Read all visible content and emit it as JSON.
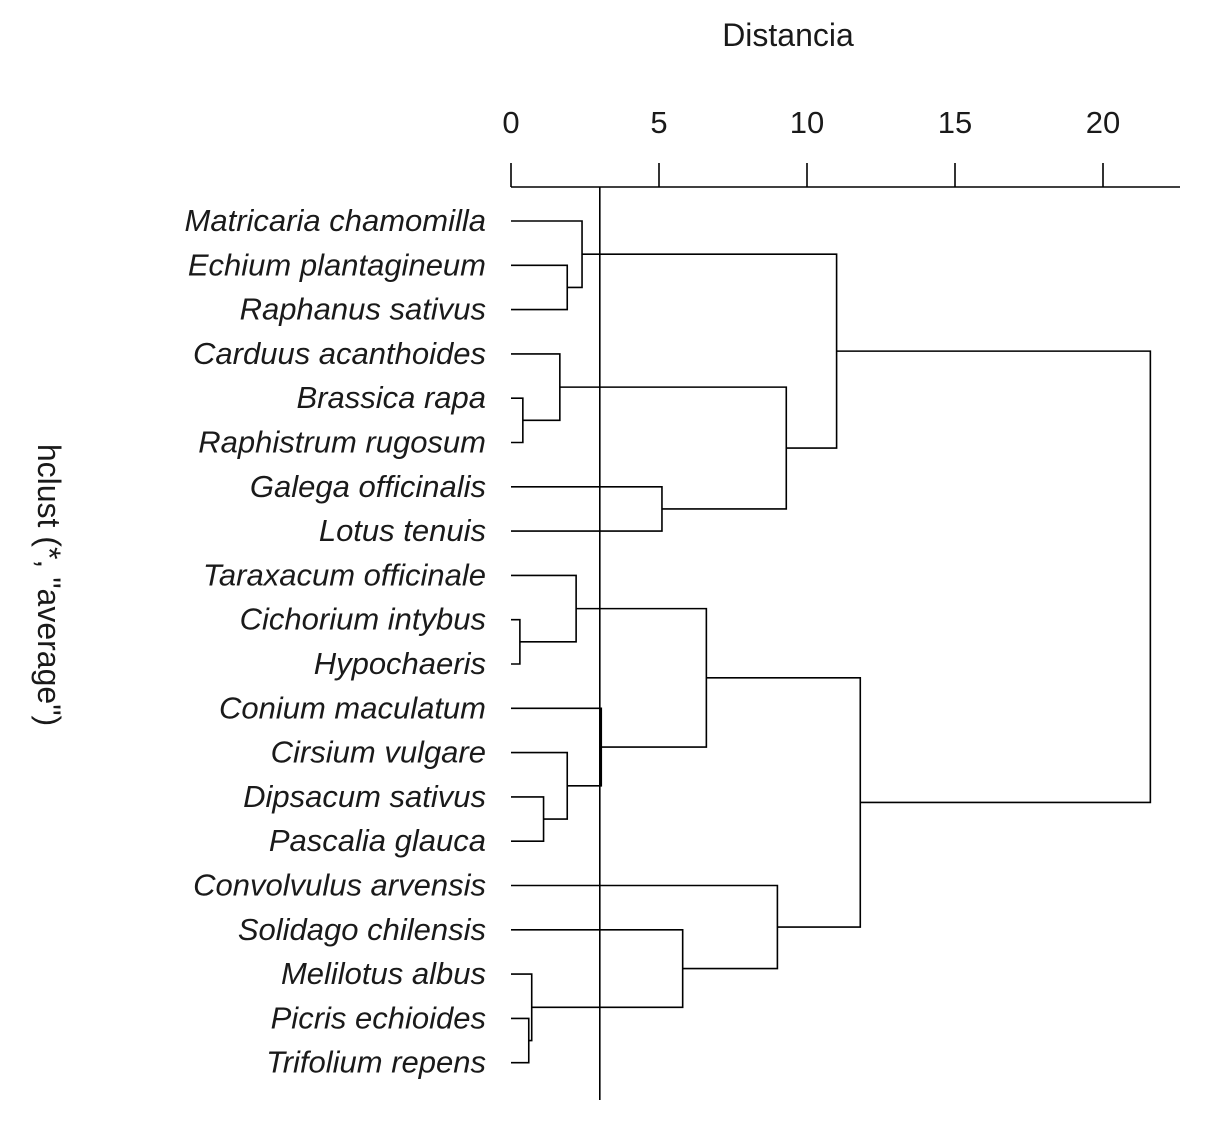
{
  "chart_data": {
    "type": "dendrogram",
    "title": "",
    "xlabel": "Distancia",
    "ylabel": "hclust (*, \"average\")",
    "xlim": [
      0,
      22.5
    ],
    "xticks": [
      "0",
      "5",
      "10",
      "15",
      "20"
    ],
    "xtick_values": [
      0,
      5,
      10,
      15,
      20
    ],
    "cut_height": 3,
    "leaves": [
      "Matricaria chamomilla",
      "Echium plantagineum",
      "Raphanus sativus",
      "Carduus acanthoides",
      "Brassica rapa",
      "Raphistrum rugosum",
      "Galega officinalis",
      "Lotus tenuis",
      "Taraxacum officinale",
      "Cichorium intybus",
      "Hypochaeris",
      "Conium maculatum",
      "Cirsium vulgare",
      "Dipsacum sativus",
      "Pascalia glauca",
      "Convolvulus arvensis",
      "Solidago chilensis",
      "Melilotus albus",
      "Picris echioides",
      "Trifolium repens"
    ],
    "merges": [
      {
        "children": [
          {
            "leaf": 1
          },
          {
            "leaf": 2
          }
        ],
        "height": 1.9
      },
      {
        "children": [
          {
            "leaf": 0
          },
          {
            "node": 0
          }
        ],
        "height": 2.4
      },
      {
        "children": [
          {
            "leaf": 4
          },
          {
            "leaf": 5
          }
        ],
        "height": 0.4
      },
      {
        "children": [
          {
            "leaf": 3
          },
          {
            "node": 2
          }
        ],
        "height": 1.65
      },
      {
        "children": [
          {
            "leaf": 6
          },
          {
            "leaf": 7
          }
        ],
        "height": 5.1
      },
      {
        "children": [
          {
            "node": 3
          },
          {
            "node": 4
          }
        ],
        "height": 9.3
      },
      {
        "children": [
          {
            "node": 1
          },
          {
            "node": 5
          }
        ],
        "height": 11.0
      },
      {
        "children": [
          {
            "leaf": 9
          },
          {
            "leaf": 10
          }
        ],
        "height": 0.3
      },
      {
        "children": [
          {
            "leaf": 8
          },
          {
            "node": 7
          }
        ],
        "height": 2.2
      },
      {
        "children": [
          {
            "leaf": 13
          },
          {
            "leaf": 14
          }
        ],
        "height": 1.1
      },
      {
        "children": [
          {
            "leaf": 12
          },
          {
            "node": 9
          }
        ],
        "height": 1.9
      },
      {
        "children": [
          {
            "leaf": 11
          },
          {
            "node": 10
          }
        ],
        "height": 3.05
      },
      {
        "children": [
          {
            "node": 8
          },
          {
            "node": 11
          }
        ],
        "height": 6.6
      },
      {
        "children": [
          {
            "leaf": 18
          },
          {
            "leaf": 19
          }
        ],
        "height": 0.6
      },
      {
        "children": [
          {
            "leaf": 17
          },
          {
            "node": 13
          }
        ],
        "height": 0.7
      },
      {
        "children": [
          {
            "leaf": 16
          },
          {
            "node": 14
          }
        ],
        "height": 5.8
      },
      {
        "children": [
          {
            "leaf": 15
          },
          {
            "node": 15
          }
        ],
        "height": 9.0
      },
      {
        "children": [
          {
            "node": 12
          },
          {
            "node": 16
          }
        ],
        "height": 11.8
      },
      {
        "children": [
          {
            "node": 6
          },
          {
            "node": 17
          }
        ],
        "height": 21.6
      }
    ]
  }
}
